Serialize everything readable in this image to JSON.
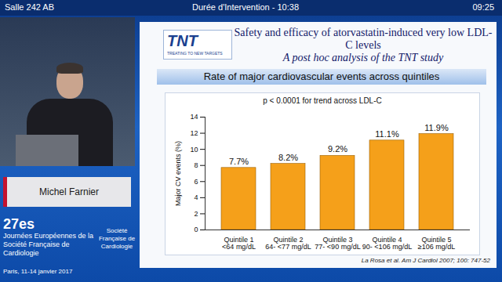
{
  "screen": {
    "room": "Salle 242 AB",
    "duration": "Durée d'Intervention - 10:38",
    "clock": "09:25",
    "speaker": "Michel Farnier",
    "event_edition": "27es",
    "event_name": "Journées Européennes de la Société Française de Cardiologie",
    "event_place_date": "Paris, 11-14 janvier 2017",
    "society": "Société Française de Cardiologie"
  },
  "slide": {
    "logo": "TNT",
    "logo_tagline": "TREATING TO NEW TARGETS",
    "title": "Safety and efficacy of atorvastatin-induced very low LDL-C levels",
    "subtitle": "A post hoc analysis of the TNT study",
    "citation": "La Rosa et al. Am J Cardiol 2007; 100: 747-52"
  },
  "chart_data": {
    "type": "bar",
    "title": "Rate of major cardiovascular events across quintiles",
    "annotation": "p < 0.0001 for trend across LDL-C",
    "y_label": "Major CV events (%)",
    "categories": [
      "Quintile 1\n<64 mg/dL",
      "Quintile 2\n64- <77 mg/dL",
      "Quintile 3\n77- <90 mg/dL",
      "Quintile 4\n90- <106 mg/dL",
      "Quintile 5\n≥106 mg/dL"
    ],
    "values": [
      7.7,
      8.2,
      9.2,
      11.1,
      11.9
    ],
    "value_labels": [
      "7.7%",
      "8.2%",
      "9.2%",
      "11.1%",
      "11.9%"
    ],
    "data_labels": true,
    "color": "#f5a01a",
    "ylim": [
      0,
      14
    ],
    "yticks": [
      0,
      2,
      4,
      6,
      8,
      10,
      12,
      14
    ],
    "grid": false
  }
}
